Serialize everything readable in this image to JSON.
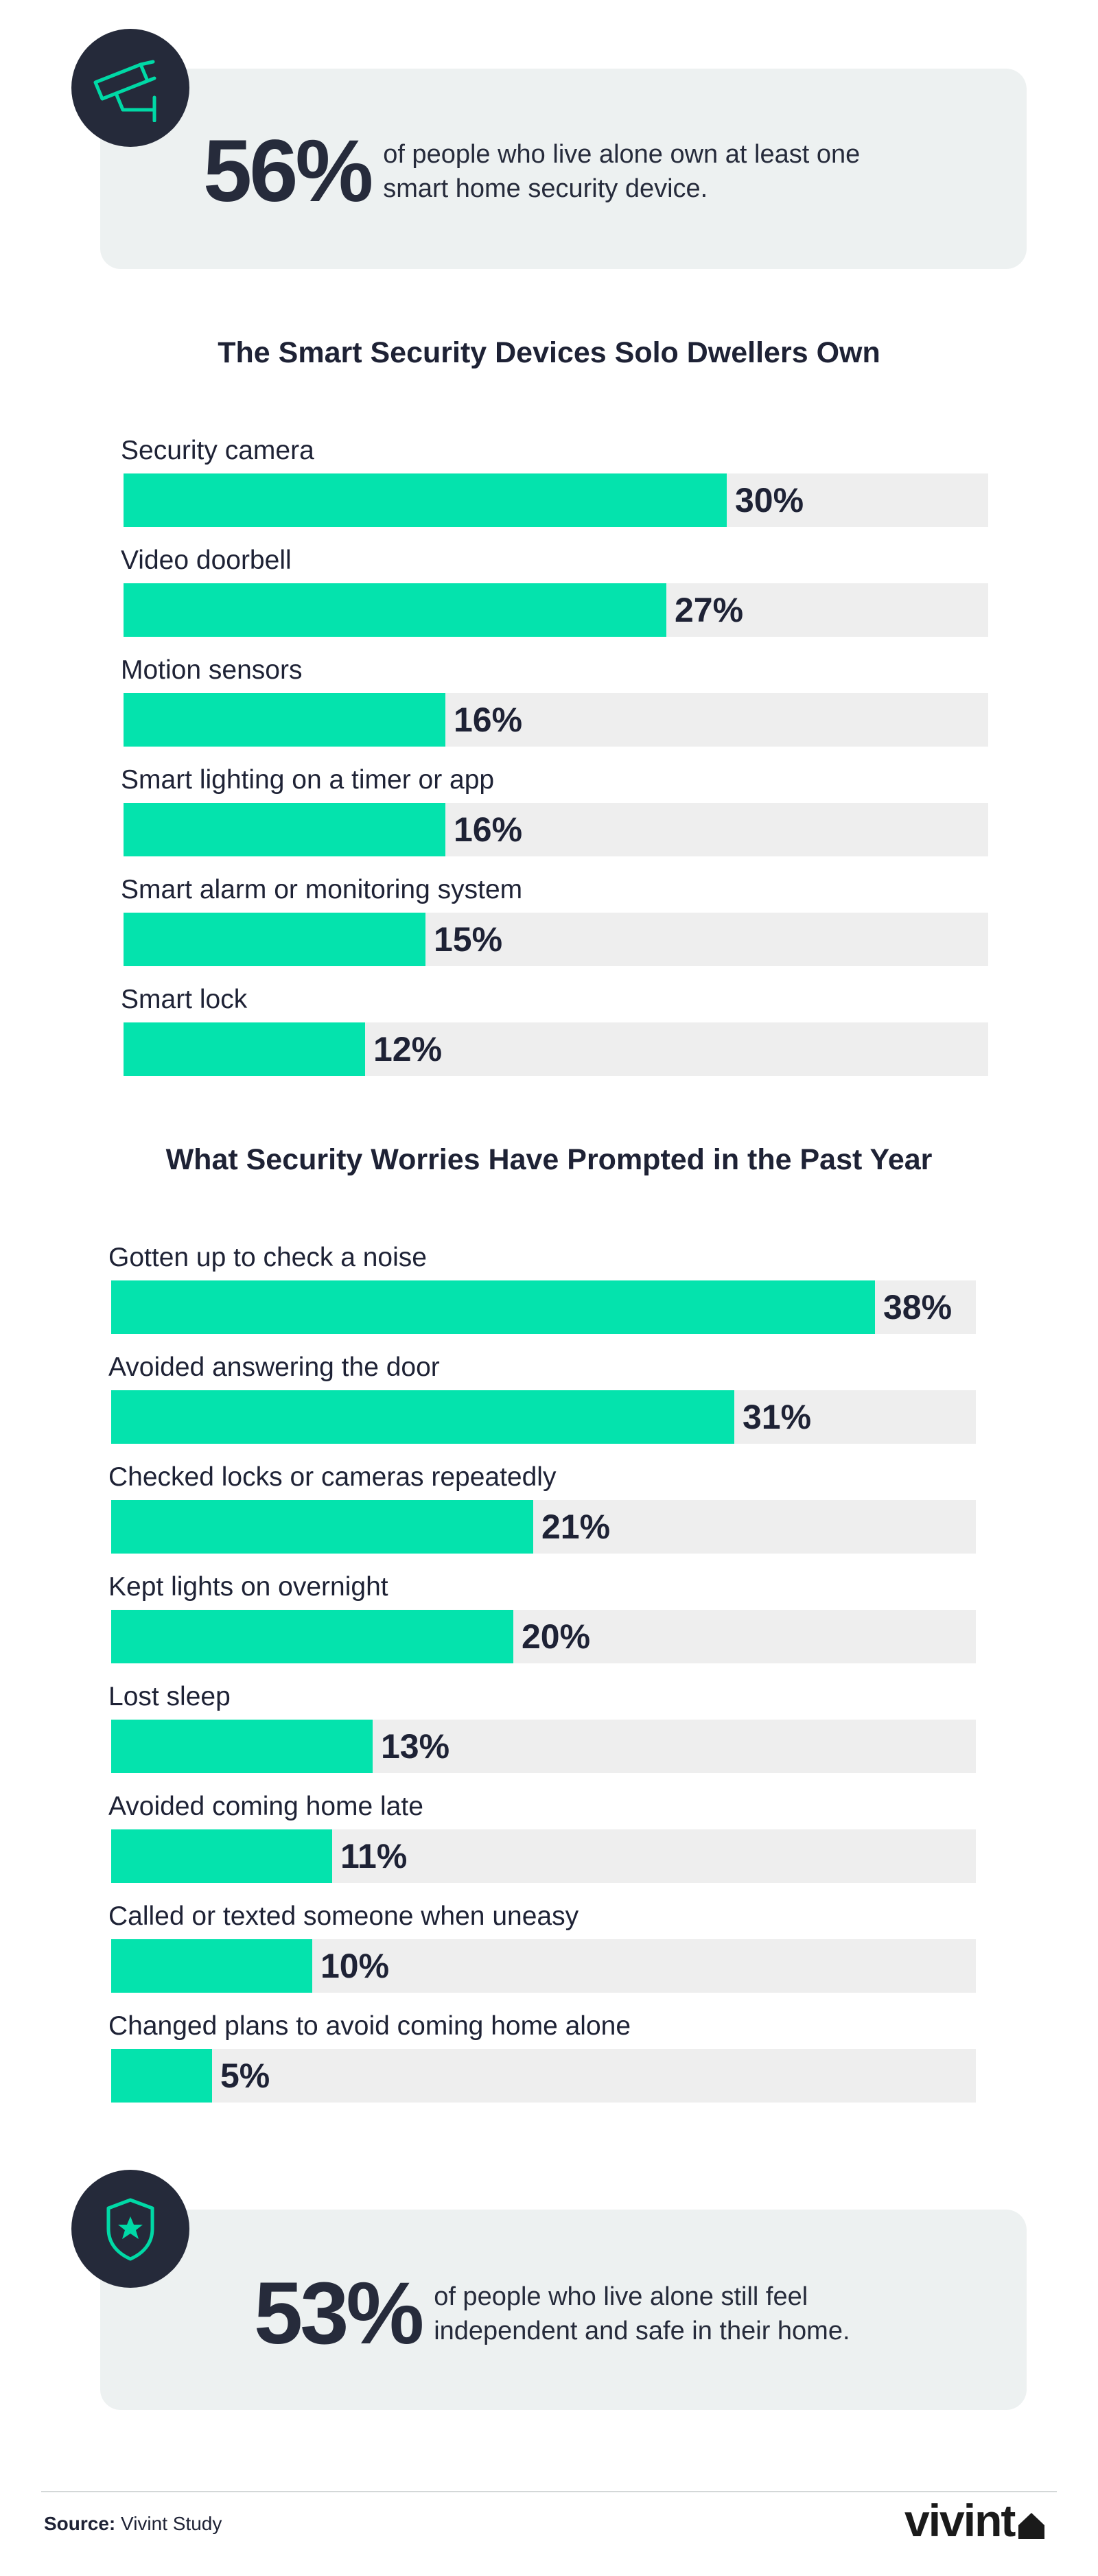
{
  "stat_top": {
    "value": "56%",
    "text": "of people who live alone own at least one smart home security device.",
    "icon": "security-camera-icon"
  },
  "stat_bottom": {
    "value": "53%",
    "text": "of people who live alone still feel independent and safe in their home.",
    "icon": "shield-star-icon"
  },
  "footer": {
    "source_label": "Source:",
    "source_name": "Vivint Study",
    "brand": "vivint"
  },
  "colors": {
    "bar": "#04e3ad",
    "track": "#eeeeee",
    "card": "#edf1f1",
    "icon_bg": "#252a3a",
    "text": "#1e2235"
  },
  "chart_data": [
    {
      "type": "bar",
      "orientation": "horizontal",
      "title": "The Smart Security Devices Solo Dwellers Own",
      "categories": [
        "Security camera",
        "Video doorbell",
        "Motion sensors",
        "Smart lighting on a timer or app",
        "Smart alarm or monitoring system",
        "Smart lock"
      ],
      "values": [
        30,
        27,
        16,
        16,
        15,
        12
      ],
      "value_labels": [
        "30%",
        "27%",
        "16%",
        "16%",
        "15%",
        "12%"
      ],
      "xlim": [
        0,
        43
      ],
      "grid": false
    },
    {
      "type": "bar",
      "orientation": "horizontal",
      "title": "What Security Worries Have Prompted in the Past Year",
      "categories": [
        "Gotten up to check a noise",
        "Avoided answering the door",
        "Checked locks or cameras repeatedly",
        "Kept lights on overnight",
        "Lost sleep",
        "Avoided coming home late",
        "Called or texted someone when uneasy",
        "Changed plans to avoid coming home alone"
      ],
      "values": [
        38,
        31,
        21,
        20,
        13,
        11,
        10,
        5
      ],
      "value_labels": [
        "38%",
        "31%",
        "21%",
        "20%",
        "13%",
        "11%",
        "10%",
        "5%"
      ],
      "xlim": [
        0,
        43
      ],
      "grid": false
    }
  ]
}
